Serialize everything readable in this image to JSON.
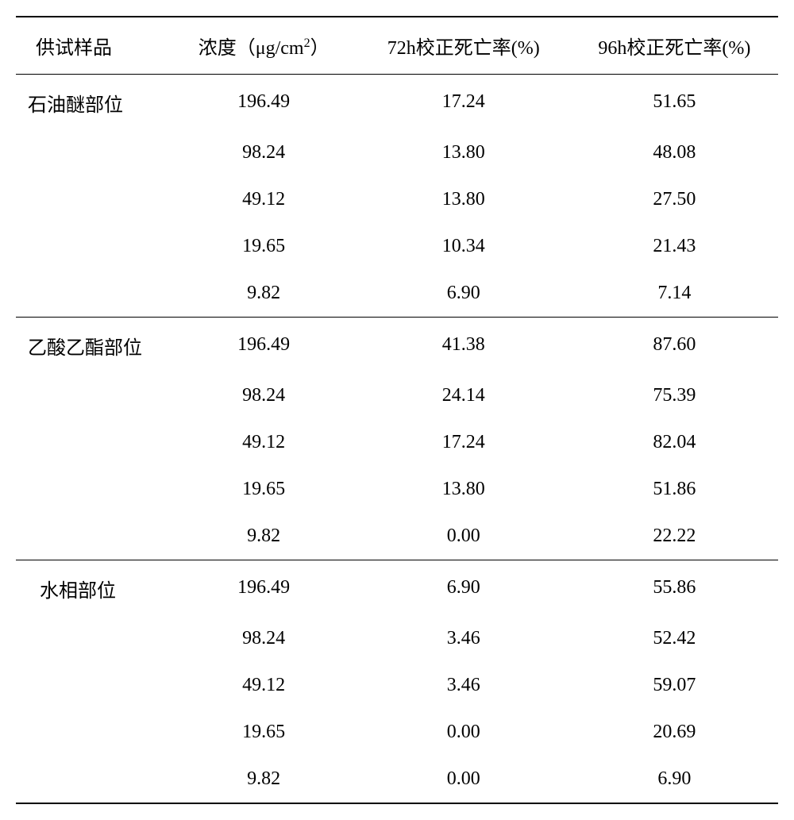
{
  "table": {
    "columns": [
      {
        "label": "供试样品",
        "key": "sample"
      },
      {
        "label_html": "浓度（μg/cm²）",
        "label_prefix": "浓度（μg/cm",
        "label_sup": "2",
        "label_suffix": "）",
        "key": "concentration"
      },
      {
        "label": "72h校正死亡率(%)",
        "key": "mortality_72h"
      },
      {
        "label": "96h校正死亡率(%)",
        "key": "mortality_96h"
      }
    ],
    "groups": [
      {
        "sample_name": "石油醚部位",
        "rows": [
          {
            "concentration": "196.49",
            "mortality_72h": "17.24",
            "mortality_96h": "51.65"
          },
          {
            "concentration": "98.24",
            "mortality_72h": "13.80",
            "mortality_96h": "48.08"
          },
          {
            "concentration": "49.12",
            "mortality_72h": "13.80",
            "mortality_96h": "27.50"
          },
          {
            "concentration": "19.65",
            "mortality_72h": "10.34",
            "mortality_96h": "21.43"
          },
          {
            "concentration": "9.82",
            "mortality_72h": "6.90",
            "mortality_96h": "7.14"
          }
        ]
      },
      {
        "sample_name": "乙酸乙酯部位",
        "rows": [
          {
            "concentration": "196.49",
            "mortality_72h": "41.38",
            "mortality_96h": "87.60"
          },
          {
            "concentration": "98.24",
            "mortality_72h": "24.14",
            "mortality_96h": "75.39"
          },
          {
            "concentration": "49.12",
            "mortality_72h": "17.24",
            "mortality_96h": "82.04"
          },
          {
            "concentration": "19.65",
            "mortality_72h": "13.80",
            "mortality_96h": "51.86"
          },
          {
            "concentration": "9.82",
            "mortality_72h": "0.00",
            "mortality_96h": "22.22"
          }
        ]
      },
      {
        "sample_name": "水相部位",
        "indent": true,
        "rows": [
          {
            "concentration": "196.49",
            "mortality_72h": "6.90",
            "mortality_96h": "55.86"
          },
          {
            "concentration": "98.24",
            "mortality_72h": "3.46",
            "mortality_96h": "52.42"
          },
          {
            "concentration": "49.12",
            "mortality_72h": "3.46",
            "mortality_96h": "59.07"
          },
          {
            "concentration": "19.65",
            "mortality_72h": "0.00",
            "mortality_96h": "20.69"
          },
          {
            "concentration": "9.82",
            "mortality_72h": "0.00",
            "mortality_96h": "6.90"
          }
        ]
      }
    ],
    "styling": {
      "font_family": "SimSun",
      "font_size_pt": 18,
      "text_color": "#000000",
      "background_color": "#ffffff",
      "border_color": "#000000",
      "header_border_top_width": 2,
      "header_border_bottom_width": 1,
      "group_separator_width": 1,
      "footer_border_width": 2
    }
  }
}
